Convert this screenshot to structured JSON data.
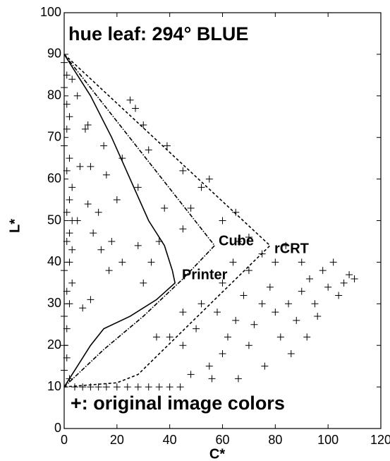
{
  "chart_data": {
    "type": "scatter",
    "title": "hue leaf: 294° BLUE",
    "annotation": "+: original image colors",
    "x_label": "C*",
    "y_label": "L*",
    "xlim": [
      0,
      120
    ],
    "xticks": [
      0,
      20,
      40,
      60,
      80,
      100,
      120
    ],
    "ylim": [
      0,
      100
    ],
    "yticks": [
      0,
      10,
      20,
      30,
      40,
      50,
      60,
      70,
      80,
      90,
      100
    ],
    "grid": false,
    "color": "#000000",
    "points": {
      "x": [
        0,
        1,
        0,
        1,
        2,
        1,
        0,
        2,
        1,
        3,
        2,
        1,
        3,
        2,
        1,
        3,
        2,
        0,
        3,
        1,
        2,
        0,
        1,
        0,
        1,
        0,
        2,
        4,
        7,
        10,
        13,
        16,
        20,
        24,
        28,
        32,
        36,
        40,
        44,
        3,
        5,
        8,
        9,
        15,
        6,
        10,
        16,
        25,
        27,
        22,
        30,
        32,
        28,
        9,
        13,
        20,
        5,
        11,
        14,
        18,
        28,
        36,
        17,
        22,
        33,
        10,
        7,
        30,
        38,
        39,
        45,
        52,
        48,
        55,
        60,
        65,
        70,
        66,
        45,
        40,
        45,
        50,
        55,
        60,
        62,
        65,
        58,
        70,
        72,
        75,
        78,
        68,
        80,
        82,
        85,
        88,
        90,
        93,
        95,
        98,
        100,
        102,
        104,
        106,
        108,
        110,
        96,
        86,
        76,
        66,
        56,
        48,
        52,
        45,
        35,
        60,
        70,
        80,
        84,
        75,
        64,
        90,
        92
      ],
      "y": [
        88,
        85,
        82,
        78,
        75,
        72,
        68,
        65,
        62,
        58,
        55,
        52,
        50,
        47,
        45,
        43,
        40,
        38,
        35,
        33,
        30,
        27,
        24,
        20,
        17,
        14,
        12,
        10,
        10,
        10,
        10,
        10,
        10,
        10,
        10,
        10,
        10,
        10,
        10,
        84,
        80,
        72,
        73,
        68,
        63,
        63,
        61,
        79,
        77,
        65,
        73,
        67,
        58,
        54,
        52,
        55,
        50,
        47,
        43,
        45,
        44,
        45,
        38,
        40,
        40,
        31,
        29,
        35,
        53,
        68,
        62,
        58,
        53,
        60,
        50,
        52,
        46,
        45,
        48,
        22,
        20,
        24,
        15,
        18,
        22,
        26,
        28,
        20,
        25,
        30,
        34,
        32,
        28,
        22,
        30,
        26,
        33,
        36,
        30,
        38,
        34,
        40,
        32,
        35,
        37,
        36,
        27,
        18,
        15,
        12,
        12,
        13,
        30,
        28,
        22,
        35,
        38,
        40,
        44,
        42,
        40,
        40,
        22
      ]
    },
    "lines": [
      {
        "name": "Printer",
        "style": "solid",
        "x": [
          0,
          10,
          18,
          25,
          32,
          38,
          41,
          42,
          35,
          25,
          15,
          10,
          5,
          1,
          0
        ],
        "y": [
          90,
          80,
          70,
          60,
          50,
          44,
          38,
          35,
          31,
          27,
          24,
          20,
          15,
          11,
          10
        ]
      },
      {
        "name": "Cube",
        "style": "dashdot",
        "x": [
          0,
          57,
          45,
          30,
          15,
          5,
          0
        ],
        "y": [
          90,
          44,
          36,
          27,
          19,
          13,
          10
        ]
      },
      {
        "name": "rCRT",
        "style": "dashed",
        "x": [
          0,
          78,
          28,
          20,
          0
        ],
        "y": [
          90,
          44,
          13,
          11,
          10
        ]
      }
    ]
  }
}
